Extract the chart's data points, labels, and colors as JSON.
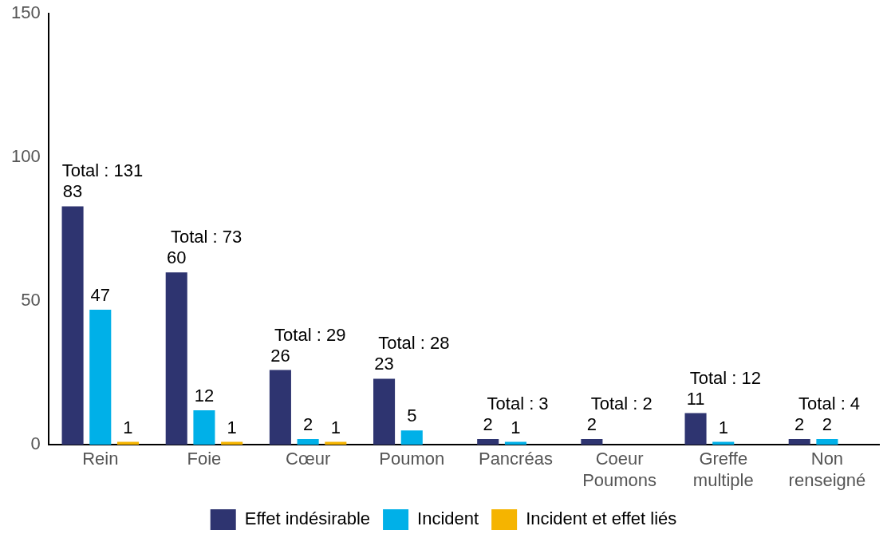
{
  "chart_data": {
    "type": "bar",
    "categories": [
      "Rein",
      "Foie",
      "Cœur",
      "Poumon",
      "Pancréas",
      "Coeur Poumons",
      "Greffe multiple",
      "Non renseigné"
    ],
    "series": [
      {
        "name": "Effet indésirable",
        "color": "#2e3470",
        "values": [
          83,
          60,
          26,
          23,
          2,
          2,
          11,
          2
        ]
      },
      {
        "name": "Incident",
        "color": "#00b0e8",
        "values": [
          47,
          12,
          2,
          5,
          1,
          null,
          1,
          2
        ]
      },
      {
        "name": "Incident et effet liés",
        "color": "#f5b400",
        "values": [
          1,
          1,
          1,
          null,
          null,
          null,
          null,
          null
        ]
      }
    ],
    "ylim": [
      0,
      150
    ],
    "yticks": [
      0,
      50,
      100,
      150
    ],
    "grid": false,
    "legend": "bottom",
    "data_labels": true,
    "totals": [
      "Total : 131",
      "Total : 73",
      "Total : 29",
      "Total : 28",
      "Total : 3",
      "Total : 2",
      "Total : 12",
      "Total : 4"
    ]
  }
}
